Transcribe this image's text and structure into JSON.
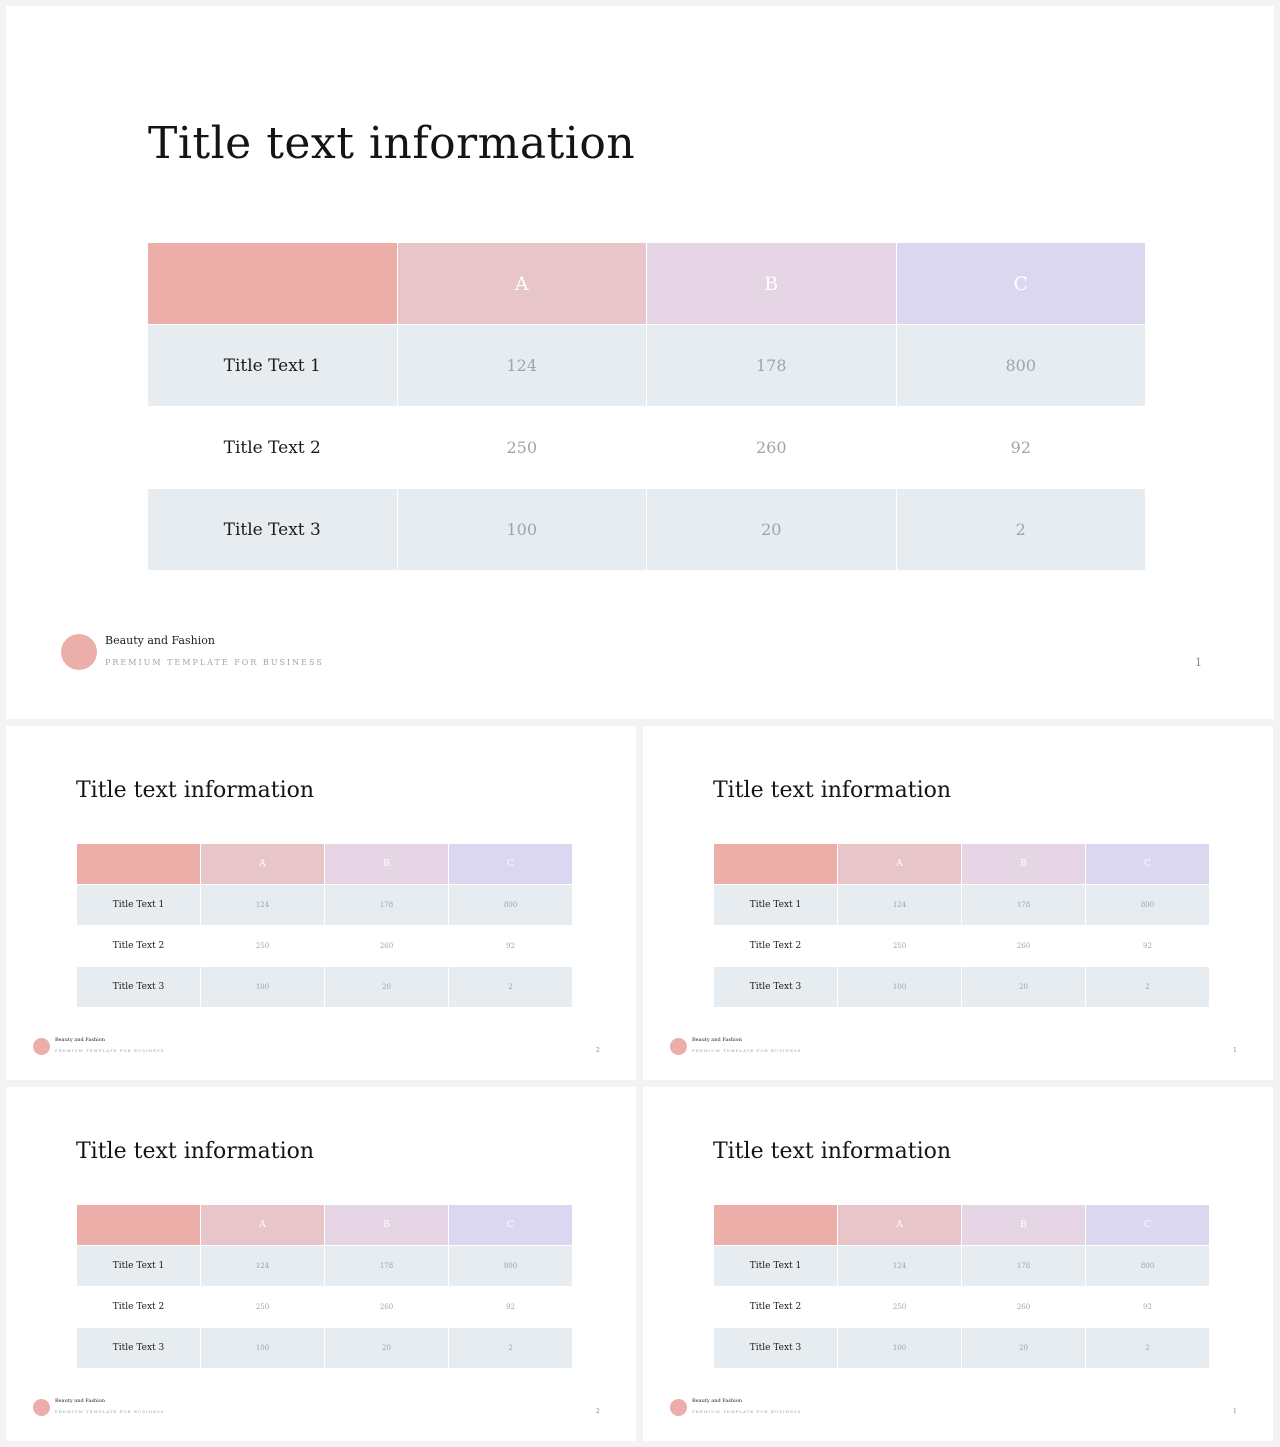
{
  "slides": [
    {
      "title": "Title text information",
      "table": {
        "headers": [
          "",
          "A",
          "B",
          "C"
        ],
        "rows": [
          {
            "label": "Title Text 1",
            "values": [
              "124",
              "178",
              "800"
            ]
          },
          {
            "label": "Title Text 2",
            "values": [
              "250",
              "260",
              "92"
            ]
          },
          {
            "label": "Title Text 3",
            "values": [
              "100",
              "20",
              "2"
            ]
          }
        ]
      },
      "footer": {
        "brand": "Beauty and Fashion",
        "tagline": "PREMIUM TEMPLATE FOR BUSINESS",
        "page": "1"
      }
    },
    {
      "title": "Title text information",
      "table": {
        "headers": [
          "",
          "A",
          "B",
          "C"
        ],
        "rows": [
          {
            "label": "Title Text 1",
            "values": [
              "124",
              "178",
              "800"
            ]
          },
          {
            "label": "Title Text 2",
            "values": [
              "250",
              "260",
              "92"
            ]
          },
          {
            "label": "Title Text 3",
            "values": [
              "100",
              "20",
              "2"
            ]
          }
        ]
      },
      "footer": {
        "brand": "Beauty and Fashion",
        "tagline": "PREMIUM TEMPLATE FOR BUSINESS",
        "page": "2"
      }
    },
    {
      "title": "Title text information",
      "table": {
        "headers": [
          "",
          "A",
          "B",
          "C"
        ],
        "rows": [
          {
            "label": "Title Text 1",
            "values": [
              "124",
              "178",
              "800"
            ]
          },
          {
            "label": "Title Text 2",
            "values": [
              "250",
              "260",
              "92"
            ]
          },
          {
            "label": "Title Text 3",
            "values": [
              "100",
              "20",
              "2"
            ]
          }
        ]
      },
      "footer": {
        "brand": "Beauty and Fashion",
        "tagline": "PREMIUM TEMPLATE FOR BUSINESS",
        "page": "1"
      }
    },
    {
      "title": "Title text information",
      "table": {
        "headers": [
          "",
          "A",
          "B",
          "C"
        ],
        "rows": [
          {
            "label": "Title Text 1",
            "values": [
              "124",
              "178",
              "800"
            ]
          },
          {
            "label": "Title Text 2",
            "values": [
              "250",
              "260",
              "92"
            ]
          },
          {
            "label": "Title Text 3",
            "values": [
              "100",
              "20",
              "2"
            ]
          }
        ]
      },
      "footer": {
        "brand": "Beauty and Fashion",
        "tagline": "PREMIUM TEMPLATE FOR BUSINESS",
        "page": "2"
      }
    },
    {
      "title": "Title text information",
      "table": {
        "headers": [
          "",
          "A",
          "B",
          "C"
        ],
        "rows": [
          {
            "label": "Title Text 1",
            "values": [
              "124",
              "178",
              "800"
            ]
          },
          {
            "label": "Title Text 2",
            "values": [
              "250",
              "260",
              "92"
            ]
          },
          {
            "label": "Title Text 3",
            "values": [
              "100",
              "20",
              "2"
            ]
          }
        ]
      },
      "footer": {
        "brand": "Beauty and Fashion",
        "tagline": "PREMIUM TEMPLATE FOR BUSINESS",
        "page": "1"
      }
    }
  ],
  "colors": {
    "accent": "#ecaea9",
    "header_a": "#e7c5c9",
    "header_b": "#e6d5e4",
    "header_c": "#dbd7f0",
    "row_shade": "#e6ecef"
  }
}
